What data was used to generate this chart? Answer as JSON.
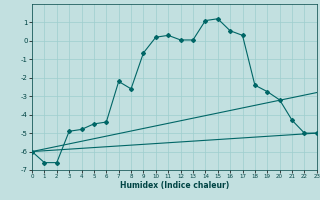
{
  "xlabel": "Humidex (Indice chaleur)",
  "background_color": "#c2e0e0",
  "grid_color": "#9ecece",
  "line_color": "#006666",
  "xlim": [
    0,
    23
  ],
  "ylim": [
    -7,
    2
  ],
  "xticks": [
    0,
    1,
    2,
    3,
    4,
    5,
    6,
    7,
    8,
    9,
    10,
    11,
    12,
    13,
    14,
    15,
    16,
    17,
    18,
    19,
    20,
    21,
    22,
    23
  ],
  "yticks": [
    -7,
    -6,
    -5,
    -4,
    -3,
    -2,
    -1,
    0,
    1
  ],
  "curve_x": [
    0,
    1,
    2,
    3,
    4,
    5,
    6,
    7,
    8,
    9,
    10,
    11,
    12,
    13,
    14,
    15,
    16,
    17,
    18,
    19,
    20,
    21,
    22,
    23
  ],
  "curve_y": [
    -6.0,
    -6.6,
    -6.6,
    -4.9,
    -4.8,
    -4.5,
    -4.4,
    -2.2,
    -2.6,
    -0.65,
    0.2,
    0.3,
    0.05,
    0.05,
    1.1,
    1.2,
    0.55,
    0.3,
    -2.4,
    -2.75,
    -3.2,
    -4.3,
    -5.0,
    -5.0
  ],
  "line1_x": [
    0,
    23
  ],
  "line1_y": [
    -6.0,
    -5.0
  ],
  "line2_x": [
    0,
    23
  ],
  "line2_y": [
    -6.0,
    -2.8
  ]
}
